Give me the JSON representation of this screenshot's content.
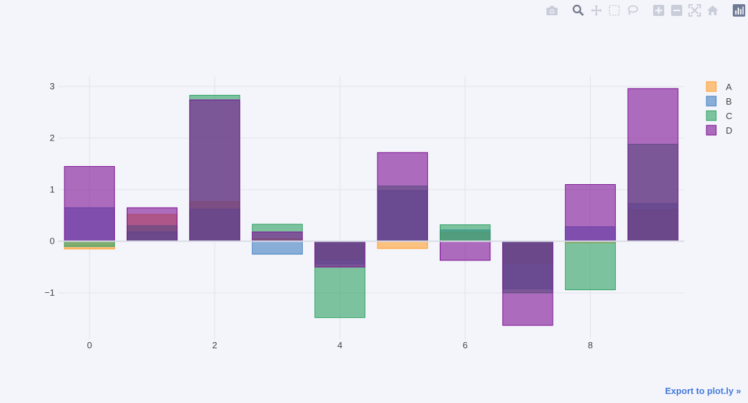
{
  "modebar": {
    "buttons": [
      "camera-icon",
      "zoom-icon",
      "pan-icon",
      "box-select-icon",
      "lasso-icon",
      "zoom-in-icon",
      "zoom-out-icon",
      "autoscale-icon",
      "reset-axes-icon",
      "plotly-logo-icon"
    ]
  },
  "export_link": "Export to plot.ly »",
  "colors": {
    "A": "#ff9e2c",
    "B": "#3f7fc1",
    "C": "#2ca063",
    "D": "#7b0f92",
    "background": "#f4f5fa",
    "grid": "#e1e3eb"
  },
  "chart_data": {
    "type": "bar",
    "barmode": "overlay",
    "x": [
      0,
      1,
      2,
      3,
      4,
      5,
      6,
      7,
      8,
      9
    ],
    "series": [
      {
        "name": "A",
        "values": [
          -0.15,
          0.52,
          0.77,
          0.05,
          -0.36,
          -0.14,
          0.18,
          -0.43,
          -0.03,
          0.61
        ]
      },
      {
        "name": "B",
        "values": [
          0.65,
          0.18,
          0.62,
          -0.25,
          -0.44,
          0.98,
          0.22,
          -0.92,
          0.28,
          0.73
        ]
      },
      {
        "name": "C",
        "values": [
          -0.1,
          0.3,
          2.83,
          0.33,
          -1.48,
          1.07,
          0.32,
          -1.0,
          -0.94,
          1.88
        ]
      },
      {
        "name": "D",
        "values": [
          1.45,
          0.65,
          2.74,
          0.18,
          -0.5,
          1.72,
          -0.37,
          -1.63,
          1.1,
          2.96
        ]
      }
    ],
    "xaxis": {
      "range": [
        -0.5,
        9.5
      ],
      "ticks": [
        0,
        2,
        4,
        6,
        8
      ]
    },
    "yaxis": {
      "range": [
        -1.9,
        3.2
      ],
      "ticks": [
        -1,
        0,
        1,
        2,
        3
      ],
      "tick_labels": [
        "−1",
        "0",
        "1",
        "2",
        "3"
      ]
    },
    "legend": {
      "position": "top-right",
      "entries": [
        "A",
        "B",
        "C",
        "D"
      ]
    },
    "grid": true,
    "bar_opacity": 0.6
  }
}
